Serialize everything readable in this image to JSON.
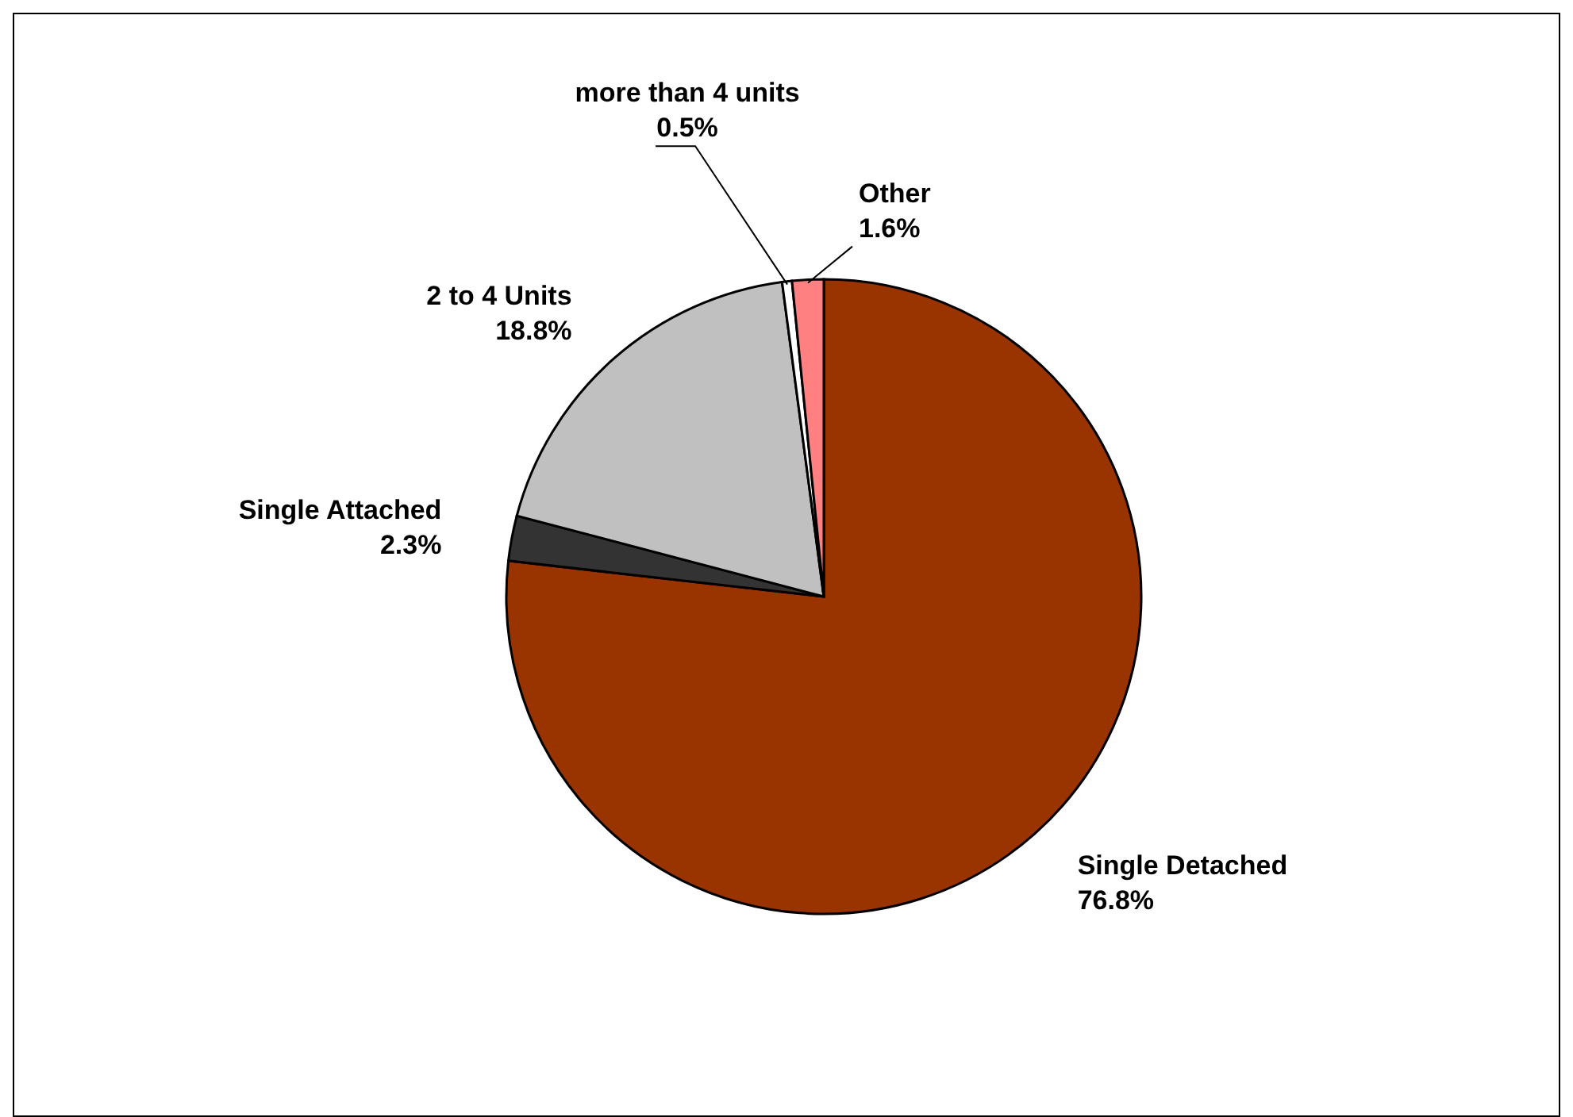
{
  "chart_data": {
    "type": "pie",
    "categories": [
      "Single Detached",
      "Single Attached",
      "2 to 4 Units",
      "more than 4 units",
      "Other"
    ],
    "values": [
      76.8,
      2.3,
      18.8,
      0.5,
      1.6
    ],
    "colors": [
      "#993300",
      "#333333",
      "#c0c0c0",
      "#ffffff",
      "#ff8080"
    ],
    "value_labels": [
      "76.8%",
      "2.3%",
      "18.8%",
      "0.5%",
      "1.6%"
    ],
    "legend": false
  }
}
